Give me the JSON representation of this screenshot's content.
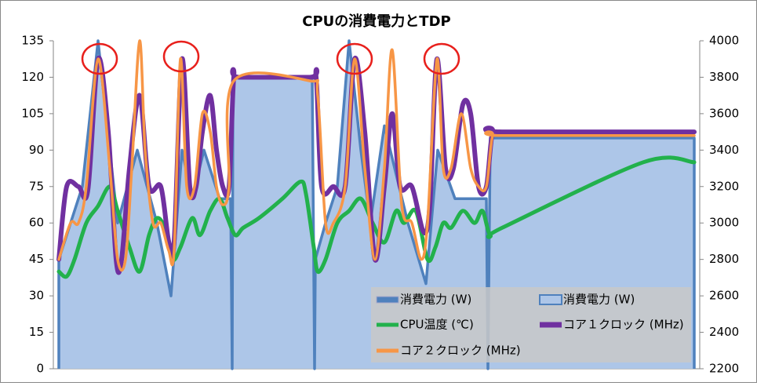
{
  "chart_data": {
    "type": "combo",
    "title": "CPUの消費電力とTDP",
    "xlim": [
      0,
      81
    ],
    "ylim": [
      0,
      135
    ],
    "yticks": [
      0,
      15,
      30,
      45,
      60,
      75,
      90,
      105,
      120,
      135
    ],
    "y2lim": [
      2200,
      4000
    ],
    "y2ticks": [
      2200,
      2400,
      2600,
      2800,
      3000,
      3200,
      3400,
      3600,
      3800,
      4000
    ],
    "series": [
      {
        "name": "消費電力 (W)",
        "type": "line",
        "color": "#4f81bd",
        "x": [
          0,
          0,
          1.5,
          3,
          5,
          6.5,
          7.5,
          10,
          12.5,
          14.3,
          15.7,
          17,
          18.5,
          20.5,
          21.9,
          22.1,
          22.2,
          32.3,
          32.6,
          32.7,
          34,
          35.5,
          37,
          38.5,
          39.7,
          41.5,
          44.5,
          46.8,
          48.3,
          50.5,
          54.5,
          54.7,
          55,
          81,
          81
        ],
        "values": [
          0,
          45,
          60,
          75,
          135,
          90,
          60,
          90,
          60,
          30,
          90,
          70,
          90,
          70,
          70,
          0,
          120,
          120,
          0,
          45,
          60,
          75,
          135,
          90,
          60,
          100,
          60,
          35,
          90,
          70,
          70,
          0,
          95,
          95,
          0
        ]
      },
      {
        "name": "消費電力 (W)",
        "type": "area",
        "color": "#adc6e8",
        "x": [
          0,
          0,
          1.5,
          3,
          5,
          6.5,
          7.5,
          10,
          12.5,
          14.3,
          15.7,
          17,
          18.5,
          20.5,
          21.9,
          22.1,
          22.2,
          32.3,
          32.6,
          32.7,
          34,
          35.5,
          37,
          38.5,
          39.7,
          41.5,
          44.5,
          46.8,
          48.3,
          50.5,
          54.5,
          54.7,
          55,
          81,
          81
        ],
        "values": [
          0,
          45,
          60,
          75,
          135,
          90,
          60,
          90,
          60,
          30,
          90,
          70,
          90,
          70,
          70,
          0,
          120,
          120,
          0,
          45,
          60,
          75,
          135,
          90,
          60,
          100,
          60,
          35,
          90,
          70,
          70,
          0,
          95,
          95,
          0
        ]
      },
      {
        "name": "CPU温度 (℃)",
        "type": "line",
        "color": "#22b14c",
        "x": [
          0,
          1,
          2,
          3.5,
          5,
          6.5,
          7.5,
          9,
          10.3,
          11.5,
          12.5,
          13.5,
          14.5,
          15.5,
          17,
          18,
          19.3,
          20.5,
          21.5,
          22.5,
          23.5,
          25.5,
          28.5,
          30.8,
          31.5,
          32.5,
          33,
          34,
          35.5,
          37,
          38.5,
          40,
          41.5,
          43,
          44,
          45.5,
          47,
          48,
          49,
          50,
          51.5,
          53,
          54,
          55,
          56.5,
          74.5,
          81
        ],
        "values": [
          40,
          38,
          45,
          60,
          67,
          75,
          65,
          50,
          40,
          55,
          62,
          58,
          45,
          50,
          62,
          55,
          65,
          70,
          62,
          55,
          58,
          62,
          70,
          77,
          72,
          50,
          40,
          45,
          60,
          65,
          70,
          60,
          52,
          65,
          60,
          65,
          45,
          50,
          60,
          58,
          65,
          60,
          65,
          55,
          58,
          85,
          85
        ]
      },
      {
        "name": "コア１クロック (MHz)",
        "type": "line",
        "axis": "y2",
        "color": "#7030a0",
        "x": [
          0,
          1,
          2.5,
          3.7,
          5,
          6.3,
          7.3,
          8,
          9,
          10.3,
          11.5,
          13,
          14,
          14.7,
          15.7,
          16.7,
          17.5,
          18.3,
          19.3,
          20.1,
          20.9,
          21.7,
          22.3,
          23,
          32,
          32.8,
          33.5,
          35,
          36.5,
          37.7,
          39,
          40.3,
          41.5,
          42.5,
          43.5,
          45,
          46.5,
          47.3,
          48.2,
          49.3,
          50.3,
          51.5,
          52.5,
          53.5,
          54.5,
          55.3,
          56.5,
          81
        ],
        "values": [
          2800,
          3200,
          3200,
          3180,
          3900,
          3500,
          2800,
          2800,
          3300,
          3700,
          3200,
          3200,
          2900,
          2900,
          3900,
          3200,
          3200,
          3500,
          3700,
          3400,
          3200,
          3200,
          3800,
          3800,
          3800,
          3800,
          3200,
          3200,
          3200,
          3900,
          3500,
          2800,
          3200,
          3600,
          3200,
          3200,
          2950,
          3100,
          3900,
          3300,
          3300,
          3650,
          3600,
          3200,
          3200,
          3500,
          3500,
          3500
        ]
      },
      {
        "name": "コア２クロック (MHz)",
        "type": "line",
        "axis": "y2",
        "color": "#f79646",
        "x": [
          0,
          1.5,
          2.5,
          3.5,
          5,
          6.5,
          7.5,
          8.5,
          9.3,
          10.3,
          11,
          12,
          13,
          14,
          14.7,
          15.5,
          16.3,
          17.3,
          18.3,
          19.3,
          20.1,
          20.9,
          21.7,
          22.3,
          32,
          33,
          34,
          35,
          36.5,
          37.7,
          39,
          40.3,
          41.5,
          42.5,
          43.7,
          45,
          46.2,
          47,
          48.2,
          49,
          50,
          51.3,
          52.5,
          53.5,
          54.5,
          55.3,
          56.5,
          81
        ],
        "values": [
          2800,
          3000,
          3000,
          3200,
          3900,
          3300,
          2800,
          2800,
          3300,
          4000,
          3400,
          3000,
          3000,
          2850,
          2850,
          3900,
          3200,
          3200,
          3600,
          3500,
          3200,
          3100,
          3200,
          3780,
          3780,
          3700,
          3000,
          3000,
          3200,
          3900,
          3300,
          2800,
          3300,
          3950,
          3100,
          3000,
          2800,
          3000,
          3900,
          3300,
          3300,
          3600,
          3300,
          3200,
          3200,
          3480,
          3480,
          3480
        ]
      }
    ]
  }
}
